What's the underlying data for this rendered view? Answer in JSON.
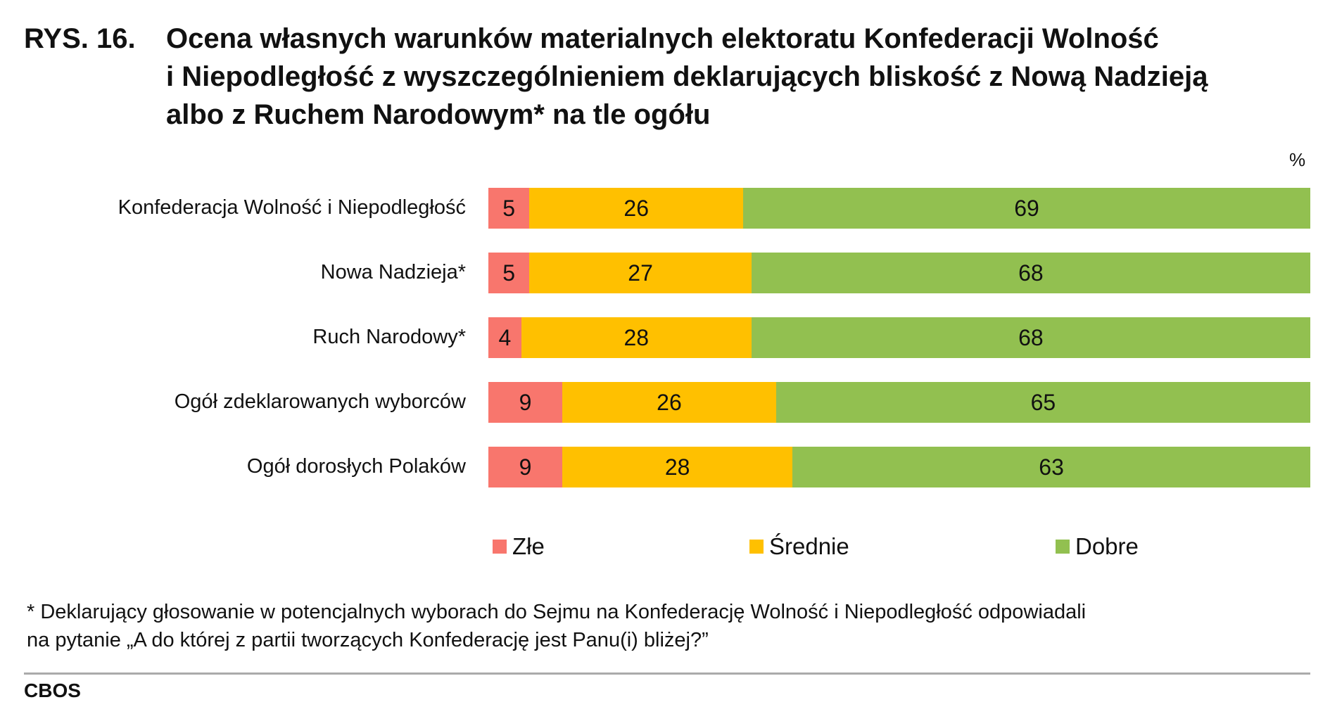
{
  "title": {
    "number": "RYS. 16.",
    "lines": [
      "Ocena własnych warunków materialnych elektoratu Konfederacji Wolność",
      "i Niepodległość z wyszczególnieniem deklarujących bliskość z Nową Nadzieją",
      "albo z Ruchem Narodowym* na tle ogółu"
    ]
  },
  "unit": "%",
  "chart_data": {
    "type": "bar",
    "orientation": "horizontal",
    "stacked": true,
    "categories": [
      "Konfederacja Wolność i Niepodległość",
      "Nowa Nadzieja*",
      "Ruch Narodowy*",
      "Ogół zdeklarowanych wyborców",
      "Ogół dorosłych Polaków"
    ],
    "series": [
      {
        "name": "Złe",
        "color": "#f8766d",
        "values": [
          5,
          5,
          4,
          9,
          9
        ]
      },
      {
        "name": "Średnie",
        "color": "#ffc000",
        "values": [
          26,
          27,
          28,
          26,
          28
        ]
      },
      {
        "name": "Dobre",
        "color": "#92c050",
        "values": [
          69,
          68,
          68,
          65,
          63
        ]
      }
    ],
    "xlim": [
      0,
      100
    ],
    "legend": "bottom",
    "grid": false
  },
  "footnote": [
    "* Deklarujący głosowanie w potencjalnych wyborach do Sejmu na Konfederację Wolność i Niepodległość odpowiadali",
    " na pytanie  „A do której z partii tworzących Konfederację jest Panu(i) bliżej?”"
  ],
  "brand": "CBOS"
}
